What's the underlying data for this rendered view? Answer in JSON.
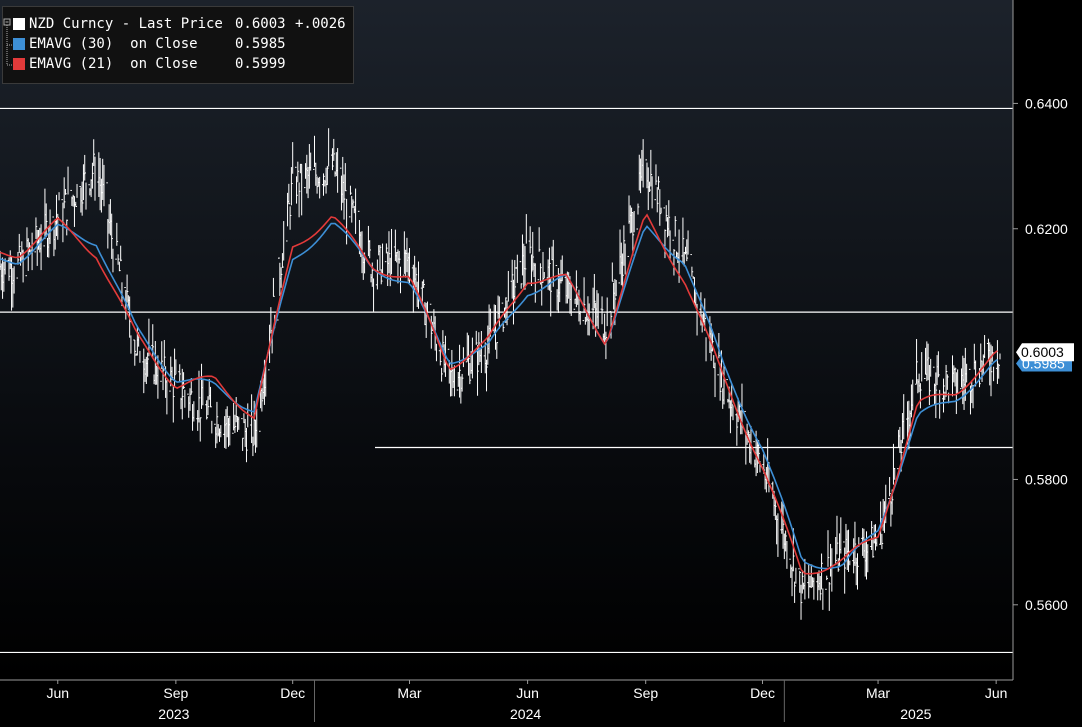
{
  "chart_data": {
    "type": "line",
    "title": "",
    "ylabel": "",
    "xlabel": "",
    "ylim": [
      0.548,
      0.6565
    ],
    "y_ticks": [
      "0.6400",
      "0.6200",
      "0.5800",
      "0.5600"
    ],
    "x_month_labels": [
      "Jun",
      "Sep",
      "Dec",
      "Mar",
      "Jun",
      "Sep",
      "Dec",
      "Mar",
      "Jun"
    ],
    "x_year_labels": [
      "2023",
      "2024",
      "2025"
    ],
    "grid": false,
    "legend_position": "top-left",
    "last_price_label": "0.6003",
    "ema30_label": "0.5985",
    "horizontal_levels": [
      0.6392,
      0.6067,
      0.5851,
      0.5524
    ],
    "series": [
      {
        "name": "NZD Curncy - Last Price",
        "color": "#ffffff",
        "x": [
          "2023-05",
          "2023-06",
          "2023-07",
          "2023-08",
          "2023-09",
          "2023-10",
          "2023-11",
          "2023-12",
          "2024-01",
          "2024-02",
          "2024-03",
          "2024-04",
          "2024-05",
          "2024-06",
          "2024-07",
          "2024-08",
          "2024-09",
          "2024-10",
          "2024-11",
          "2024-12",
          "2025-01",
          "2025-02",
          "2025-03",
          "2025-04",
          "2025-05",
          "2025-06"
        ],
        "values": [
          0.614,
          0.622,
          0.63,
          0.601,
          0.595,
          0.59,
          0.587,
          0.627,
          0.63,
          0.614,
          0.615,
          0.596,
          0.601,
          0.616,
          0.61,
          0.605,
          0.63,
          0.615,
          0.595,
          0.582,
          0.562,
          0.568,
          0.57,
          0.597,
          0.595,
          0.6003
        ]
      },
      {
        "name": "EMAVG (30) on Close",
        "color": "#3d8fd6",
        "x": [
          "2023-05",
          "2023-06",
          "2023-07",
          "2023-08",
          "2023-09",
          "2023-10",
          "2023-11",
          "2023-12",
          "2024-01",
          "2024-02",
          "2024-03",
          "2024-04",
          "2024-05",
          "2024-06",
          "2024-07",
          "2024-08",
          "2024-09",
          "2024-10",
          "2024-11",
          "2024-12",
          "2025-01",
          "2025-02",
          "2025-03",
          "2025-04",
          "2025-05",
          "2025-06"
        ],
        "values": [
          0.615,
          0.62,
          0.618,
          0.604,
          0.596,
          0.595,
          0.591,
          0.615,
          0.621,
          0.614,
          0.611,
          0.599,
          0.601,
          0.61,
          0.612,
          0.602,
          0.62,
          0.615,
          0.598,
          0.585,
          0.567,
          0.566,
          0.572,
          0.59,
          0.593,
          0.5985
        ]
      },
      {
        "name": "EMAVG (21) on Close",
        "color": "#e23a3a",
        "x": [
          "2023-05",
          "2023-06",
          "2023-07",
          "2023-08",
          "2023-09",
          "2023-10",
          "2023-11",
          "2023-12",
          "2024-01",
          "2024-02",
          "2024-03",
          "2024-04",
          "2024-05",
          "2024-06",
          "2024-07",
          "2024-08",
          "2024-09",
          "2024-10",
          "2024-11",
          "2024-12",
          "2025-01",
          "2025-02",
          "2025-03",
          "2025-04",
          "2025-05",
          "2025-06"
        ],
        "values": [
          0.616,
          0.621,
          0.616,
          0.603,
          0.595,
          0.596,
          0.59,
          0.617,
          0.622,
          0.614,
          0.612,
          0.598,
          0.602,
          0.612,
          0.612,
          0.602,
          0.622,
          0.612,
          0.596,
          0.582,
          0.565,
          0.567,
          0.571,
          0.592,
          0.594,
          0.5999
        ]
      }
    ]
  },
  "legend": {
    "rows": [
      {
        "label": "NZD Curncy - Last Price",
        "value": "0.6003",
        "change": "+.0026",
        "color": "#ffffff"
      },
      {
        "label": "EMAVG (30)  on Close",
        "value": "0.5985",
        "change": "",
        "color": "#3d8fd6"
      },
      {
        "label": "EMAVG (21)  on Close",
        "value": "0.5999",
        "change": "",
        "color": "#e23a3a"
      }
    ]
  },
  "colors": {
    "background": "#000000",
    "plot_background_top": "#1a1f26",
    "axis": "#9a9a9a",
    "text": "#ffffff"
  }
}
